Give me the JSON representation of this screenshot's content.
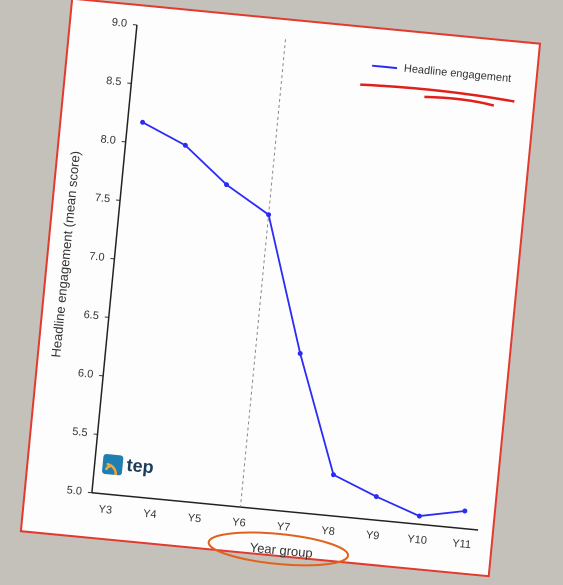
{
  "chart_data": {
    "type": "line",
    "x_label": "Year group",
    "y_label": "Headline engagement (mean score)",
    "logo": "tep",
    "categories": [
      "Y3",
      "Y4",
      "Y5",
      "Y6",
      "Y7",
      "Y8",
      "Y9",
      "Y10",
      "Y11"
    ],
    "series": [
      {
        "name": "Headline engagement",
        "color": "#2b2bf5",
        "values": [
          8.18,
          8.02,
          7.72,
          7.5,
          6.35,
          5.35,
          5.2,
          5.07,
          5.15
        ]
      }
    ],
    "ylim": [
      5.0,
      9.0
    ],
    "yticks": [
      {
        "value": 5,
        "label": "5.0"
      },
      5.5,
      {
        "value": 6,
        "label": "6.0"
      },
      6.5,
      {
        "value": 7,
        "label": "7.0"
      },
      7.5,
      {
        "value": 8,
        "label": "8.0"
      },
      8.5,
      {
        "value": 9,
        "label": "9.0"
      }
    ],
    "marker_line_category": "Y6",
    "legend_position": "upper right"
  }
}
